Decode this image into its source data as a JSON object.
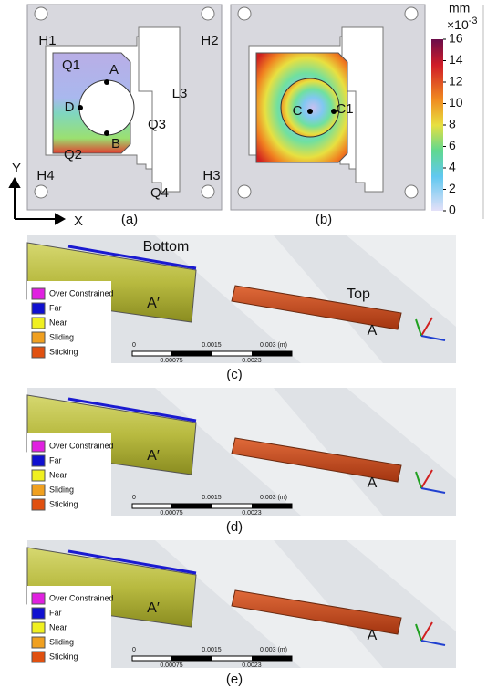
{
  "panel_a": {
    "holes": [
      "H1",
      "H2",
      "H3",
      "H4"
    ],
    "notches": [
      "Q1",
      "Q2",
      "Q3",
      "Q4"
    ],
    "points": [
      "A",
      "B",
      "D"
    ],
    "link": "L3",
    "caption": "(a)"
  },
  "axes": {
    "y": "Y",
    "x": "X"
  },
  "panel_b": {
    "points": [
      "C",
      "C1"
    ],
    "caption": "(b)"
  },
  "colorbar": {
    "unit": "mm",
    "scale": "×10",
    "exponent": "-3",
    "range": [
      0,
      16
    ],
    "ticks": [
      16,
      14,
      12,
      10,
      8,
      6,
      4,
      2,
      0
    ]
  },
  "legend": [
    "Over Constrained",
    "Far",
    "Near",
    "Sliding",
    "Sticking"
  ],
  "scale_bar": {
    "top": [
      "0",
      "0.0015",
      "0.003 (m)"
    ],
    "bottom": [
      "0.00075",
      "0.0023"
    ]
  },
  "contact_panels": [
    {
      "caption": "(c)",
      "left_label": "A′",
      "right_label": "A",
      "bottom_label": "Bottom",
      "top_label": "Top"
    },
    {
      "caption": "(d)",
      "left_label": "A′",
      "right_label": "A"
    },
    {
      "caption": "(e)",
      "left_label": "A′",
      "right_label": "A"
    }
  ]
}
